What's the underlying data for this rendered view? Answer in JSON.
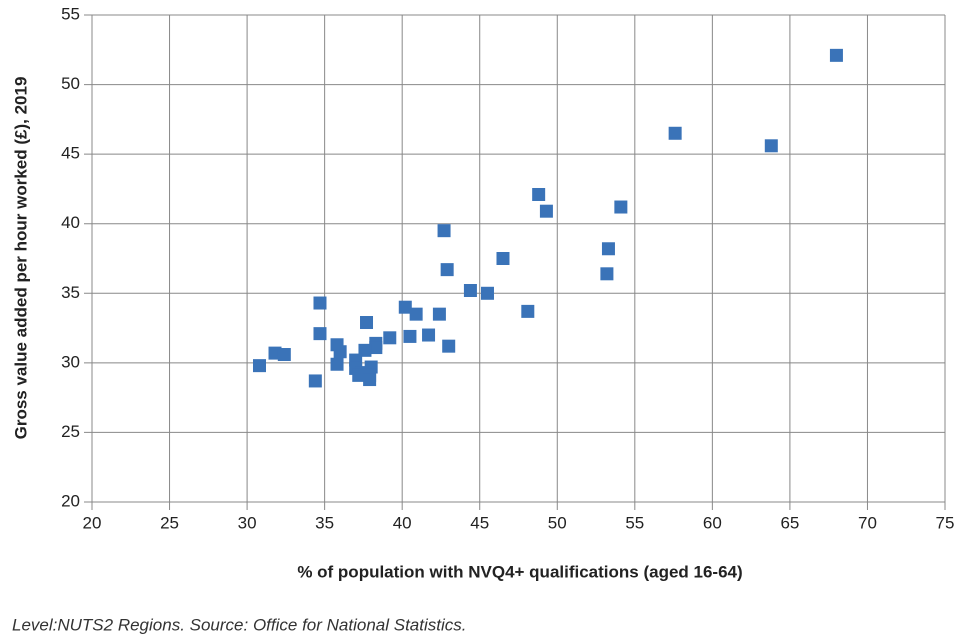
{
  "chart_data": {
    "type": "scatter",
    "xlabel": "% of population with NVQ4+ qualifications (aged 16-64)",
    "ylabel": "Gross value added per hour worked (£), 2019",
    "footnote": "Level:NUTS2 Regions.  Source: Office for National Statistics.",
    "xlim": [
      20,
      75
    ],
    "ylim": [
      20,
      55
    ],
    "xticks": [
      20,
      25,
      30,
      35,
      40,
      45,
      50,
      55,
      60,
      65,
      70,
      75
    ],
    "yticks": [
      20,
      25,
      30,
      35,
      40,
      45,
      50,
      55
    ],
    "grid": true,
    "color": "#3a73b8",
    "x": [
      68.0,
      57.6,
      63.8,
      48.8,
      49.3,
      54.1,
      42.7,
      53.3,
      46.5,
      42.9,
      53.2,
      44.4,
      45.5,
      34.7,
      40.2,
      48.1,
      40.9,
      42.4,
      37.7,
      34.7,
      40.5,
      41.7,
      39.2,
      43.0,
      35.8,
      36.0,
      38.3,
      38.3,
      37.6,
      31.8,
      32.4,
      35.8,
      30.8,
      37.0,
      37.0,
      38.0,
      37.4,
      37.2,
      37.9,
      37.9,
      34.4
    ],
    "y": [
      52.1,
      46.5,
      45.6,
      42.1,
      40.9,
      41.2,
      39.5,
      38.2,
      37.5,
      36.7,
      36.4,
      35.2,
      35.0,
      34.3,
      34.0,
      33.7,
      33.5,
      33.5,
      32.9,
      32.1,
      31.9,
      32.0,
      31.8,
      31.2,
      31.3,
      30.8,
      31.4,
      31.1,
      30.9,
      30.7,
      30.6,
      29.9,
      29.8,
      30.2,
      29.6,
      29.7,
      29.3,
      29.1,
      29.1,
      28.8,
      28.7
    ]
  }
}
